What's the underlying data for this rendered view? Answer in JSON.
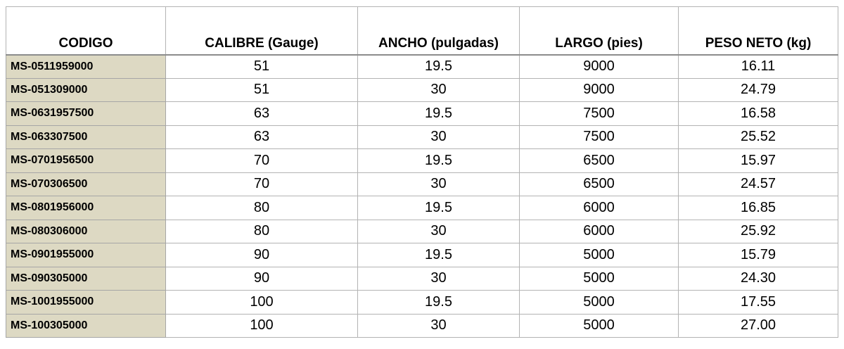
{
  "table": {
    "headers": [
      "CODIGO",
      "CALIBRE (Gauge)",
      "ANCHO (pulgadas)",
      "LARGO (pies)",
      "PESO NETO (kg)"
    ],
    "rows": [
      [
        "MS-0511959000",
        "51",
        "19.5",
        "9000",
        "16.11"
      ],
      [
        "MS-051309000",
        "51",
        "30",
        "9000",
        "24.79"
      ],
      [
        "MS-0631957500",
        "63",
        "19.5",
        "7500",
        "16.58"
      ],
      [
        "MS-063307500",
        "63",
        "30",
        "7500",
        "25.52"
      ],
      [
        "MS-0701956500",
        "70",
        "19.5",
        "6500",
        "15.97"
      ],
      [
        "MS-070306500",
        "70",
        "30",
        "6500",
        "24.57"
      ],
      [
        "MS-0801956000",
        "80",
        "19.5",
        "6000",
        "16.85"
      ],
      [
        "MS-080306000",
        "80",
        "30",
        "6000",
        "25.92"
      ],
      [
        "MS-0901955000",
        "90",
        "19.5",
        "5000",
        "15.79"
      ],
      [
        "MS-090305000",
        "90",
        "30",
        "5000",
        "24.30"
      ],
      [
        "MS-1001955000",
        "100",
        "19.5",
        "5000",
        "17.55"
      ],
      [
        "MS-100305000",
        "100",
        "30",
        "5000",
        "27.00"
      ]
    ]
  },
  "colors": {
    "code_column_background": "#ddd9c3",
    "grid_line": "#b3b3b3"
  }
}
